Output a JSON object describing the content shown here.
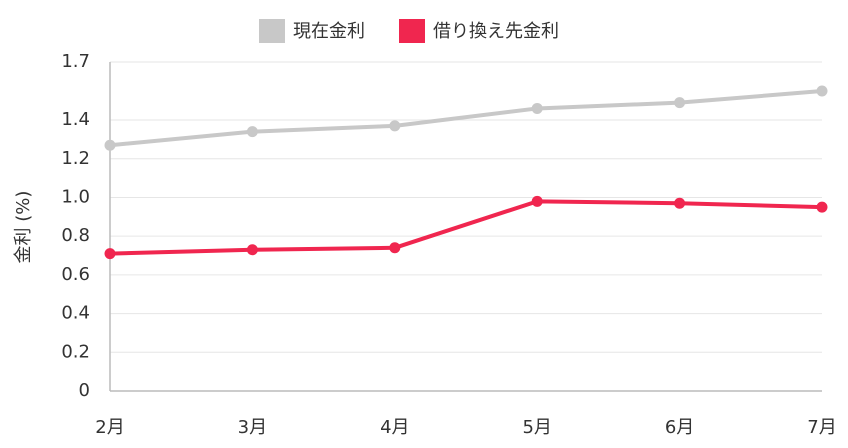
{
  "chart_data": {
    "type": "line",
    "y_label": "金利 (%)",
    "categories": [
      "2月",
      "3月",
      "4月",
      "5月",
      "6月",
      "7月"
    ],
    "series": [
      {
        "name": "現在金利",
        "color": "#c8c8c8",
        "values": [
          1.27,
          1.34,
          1.37,
          1.46,
          1.49,
          1.55
        ]
      },
      {
        "name": "借り換え先金利",
        "color": "#f0264f",
        "values": [
          0.71,
          0.73,
          0.74,
          0.98,
          0.97,
          0.95
        ]
      }
    ],
    "ylim": [
      0,
      1.7
    ],
    "yticks": [
      0,
      0.2,
      0.4,
      0.6,
      0.8,
      {
        "value": 1,
        "label": "1.0"
      },
      1.2,
      1.4,
      1.7
    ],
    "grid": true
  }
}
